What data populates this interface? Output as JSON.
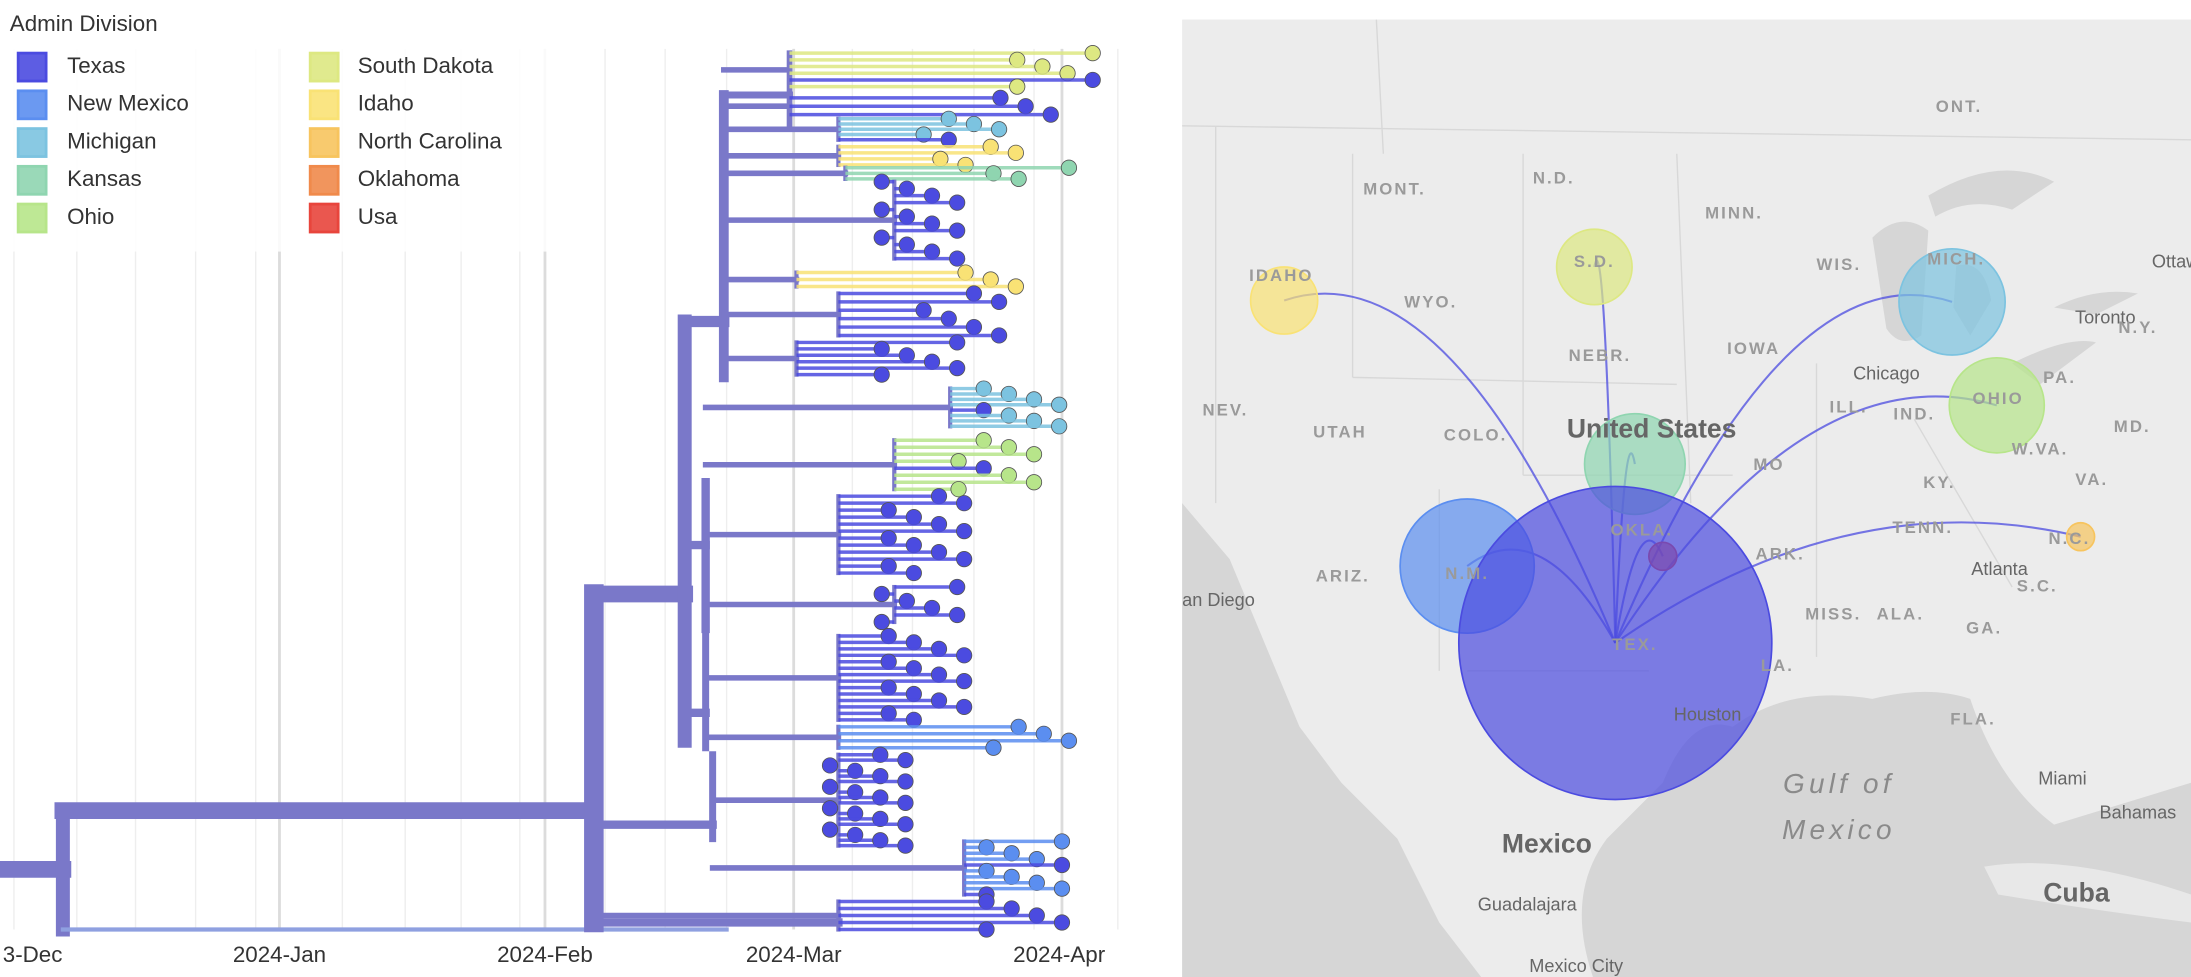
{
  "legend": {
    "title": "Admin Division",
    "items": [
      {
        "label": "Texas",
        "color": "#4b4be0"
      },
      {
        "label": "New Mexico",
        "color": "#5b8ef0"
      },
      {
        "label": "Michigan",
        "color": "#7cc3e0"
      },
      {
        "label": "Kansas",
        "color": "#8fd5b0"
      },
      {
        "label": "Ohio",
        "color": "#b7e58a"
      },
      {
        "label": "South Dakota",
        "color": "#dde882"
      },
      {
        "label": "Idaho",
        "color": "#f9e275"
      },
      {
        "label": "North Carolina",
        "color": "#f7c45e"
      },
      {
        "label": "Oklahoma",
        "color": "#f08a4b"
      },
      {
        "label": "Usa",
        "color": "#e8453c"
      }
    ]
  },
  "tree": {
    "axis_labels": [
      "3-Dec",
      "2024-Jan",
      "2024-Feb",
      "2024-Mar",
      "2024-Apr"
    ]
  },
  "map": {
    "labels": [
      "ONT.",
      "MONT.",
      "N.D.",
      "MINN.",
      "WIS.",
      "MICH.",
      "Ottawa",
      "IDAHO",
      "WYO.",
      "S.D.",
      "Toronto",
      "N.Y.",
      "NEBR.",
      "IOWA",
      "Chicago",
      "PA.",
      "NEV.",
      "UTAH",
      "COLO.",
      "United States",
      "ILL.",
      "IND.",
      "OHIO",
      "MD.",
      "W.VA.",
      "MO",
      "KY.",
      "VA.",
      "OKLA.",
      "TENN.",
      "ARK.",
      "Atlanta",
      "N.C.",
      "ARIZ.",
      "N.M.",
      "S.C.",
      "an Diego",
      "MISS.",
      "ALA.",
      "GA.",
      "TEX.",
      "LA.",
      "Houston",
      "FLA.",
      "Gulf of",
      "Mexico",
      "Miami",
      "Bahamas",
      "Mexico",
      "Cuba",
      "Guadalajara",
      "Mexico City"
    ]
  }
}
